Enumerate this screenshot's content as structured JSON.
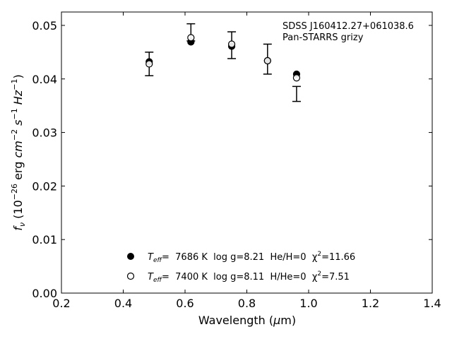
{
  "chart_data": {
    "type": "scatter",
    "xlim": [
      0.2,
      1.4
    ],
    "ylim": [
      0.0,
      0.0525
    ],
    "xticks": [
      0.2,
      0.4,
      0.6,
      0.8,
      1.0,
      1.2,
      1.4
    ],
    "xtick_labels": [
      "0.2",
      "0.4",
      "0.6",
      "0.8",
      "1.0",
      "1.2",
      "1.4"
    ],
    "yticks": [
      0.0,
      0.01,
      0.02,
      0.03,
      0.04,
      0.05
    ],
    "ytick_labels": [
      "0.00",
      "0.01",
      "0.02",
      "0.03",
      "0.04",
      "0.05"
    ],
    "xlabel": "Wavelength (μm)",
    "ylabel": "f_ν (10^−26 erg cm^−2 s^−1 Hz^−1)",
    "annotation": [
      "SDSS J160412.27+061038.6",
      "Pan-STARRS grizy"
    ],
    "grid": false,
    "legend_position": "lower center",
    "observed": {
      "x": [
        0.484,
        0.619,
        0.751,
        0.867,
        0.961
      ],
      "y": [
        0.0428,
        0.0487,
        0.0463,
        0.0437,
        0.0372
      ],
      "yerr": [
        0.0022,
        0.0016,
        0.0025,
        0.0028,
        0.0014
      ]
    },
    "series": [
      {
        "name": "T_eff= 7686 K log g=8.21 He/H=0 χ²=11.66",
        "marker": "filled-circle",
        "x": [
          0.484,
          0.619,
          0.751,
          0.867,
          0.961
        ],
        "y": [
          0.0432,
          0.0469,
          0.0461,
          0.0434,
          0.0409
        ]
      },
      {
        "name": "T_eff= 7400 K log g=8.11 H/He=0 χ²=7.51",
        "marker": "open-circle",
        "x": [
          0.484,
          0.619,
          0.751,
          0.867,
          0.961
        ],
        "y": [
          0.0428,
          0.0477,
          0.0465,
          0.0434,
          0.0402
        ]
      }
    ],
    "legend": [
      {
        "marker": "filled-circle",
        "teff_label": "T",
        "teff_sub": "eff",
        "text": "=  7686 K  log g=8.21  He/H=0  χ",
        "sup": "2",
        "tail": "=11.66"
      },
      {
        "marker": "open-circle",
        "teff_label": "T",
        "teff_sub": "eff",
        "text": "=  7400 K  log g=8.11  H/He=0  χ",
        "sup": "2",
        "tail": "=7.51"
      }
    ],
    "ylabel_parts": {
      "f": "f",
      "nu": "ν",
      "open": " (10",
      "exp1": "−26",
      "erg": " erg ",
      "cm": "cm",
      "exp2": "−2",
      "s": " s",
      "exp3": "−1",
      "hz": " Hz",
      "exp4": "−1",
      "close": ")"
    },
    "xlabel_parts": {
      "pre": "Wavelength (",
      "mu": "μ",
      "post": "m)"
    }
  }
}
